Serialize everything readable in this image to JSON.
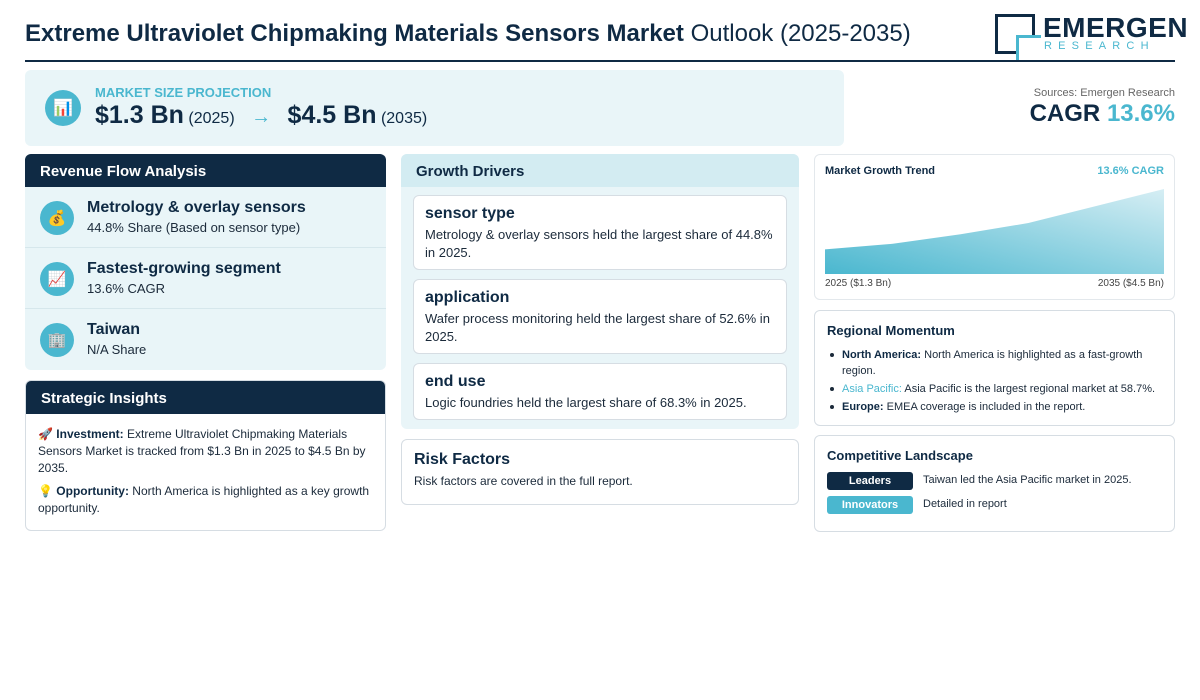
{
  "header": {
    "title_bold": "Extreme Ultraviolet Chipmaking Materials Sensors Market",
    "title_rest": "Outlook (2025-2035)"
  },
  "logo": {
    "word": "EMERGEN",
    "sub": "RESEARCH"
  },
  "projection": {
    "label": "MARKET SIZE PROJECTION",
    "start_value": "$1.3 Bn",
    "start_year": "(2025)",
    "arrow": "→",
    "end_value": "$4.5 Bn",
    "end_year": "(2035)",
    "icon": "bar-chart-icon"
  },
  "cagr_box": {
    "sources": "Sources: Emergen Research",
    "label": "CAGR",
    "value": "13.6%"
  },
  "revenue_flow": {
    "title": "Revenue Flow Analysis",
    "items": [
      {
        "icon": "money-bag-icon",
        "glyph": "💰",
        "title": "Metrology & overlay sensors",
        "sub": "44.8% Share (Based on sensor type)"
      },
      {
        "icon": "trend-up-icon",
        "glyph": "📈",
        "title": "Fastest-growing segment",
        "sub": "13.6% CAGR"
      },
      {
        "icon": "building-icon",
        "glyph": "🏢",
        "title": "Taiwan",
        "sub": "N/A Share"
      }
    ]
  },
  "strategic_insights": {
    "title": "Strategic Insights",
    "items": [
      {
        "icon": "🚀",
        "label": "Investment:",
        "text": "Extreme Ultraviolet Chipmaking Materials Sensors Market is tracked from $1.3 Bn in 2025 to $4.5 Bn by 2035."
      },
      {
        "icon": "💡",
        "label": "Opportunity:",
        "text": "North America is highlighted as a key growth opportunity."
      }
    ]
  },
  "growth_drivers": {
    "title": "Growth Drivers",
    "cards": [
      {
        "title": "sensor type",
        "text": "Metrology & overlay sensors held the largest share of 44.8% in 2025."
      },
      {
        "title": "application",
        "text": "Wafer process monitoring held the largest share of 52.6% in 2025."
      },
      {
        "title": "end use",
        "text": "Logic foundries held the largest share of 68.3% in 2025."
      }
    ]
  },
  "risk": {
    "title": "Risk Factors",
    "text": "Risk factors are covered in the full report."
  },
  "trend": {
    "title": "Market Growth Trend",
    "cagr": "13.6% CAGR",
    "start_label": "2025 ($1.3 Bn)",
    "end_label": "2035 ($4.5 Bn)",
    "colors": {
      "fill_top": "#d6eef4",
      "fill_bottom": "#4ab7cf"
    }
  },
  "chart_data": {
    "type": "area",
    "x": [
      2025,
      2027,
      2029,
      2031,
      2033,
      2035
    ],
    "values": [
      1.3,
      1.6,
      2.1,
      2.7,
      3.6,
      4.5
    ],
    "title": "Market Growth Trend",
    "xlabel": "",
    "ylabel": "",
    "ylim": [
      0,
      4.5
    ],
    "grid": false
  },
  "regional": {
    "title": "Regional Momentum",
    "items": [
      {
        "name": "North America:",
        "accent": false,
        "text": "North America is highlighted as a fast-growth region."
      },
      {
        "name": "Asia Pacific:",
        "accent": true,
        "text": "Asia Pacific is the largest regional market at 58.7%."
      },
      {
        "name": "Europe:",
        "accent": false,
        "text": "EMEA coverage is included in the report."
      }
    ]
  },
  "competitive": {
    "title": "Competitive Landscape",
    "rows": [
      {
        "badge": "Leaders",
        "style": "dark",
        "text": "Taiwan led the Asia Pacific market in 2025."
      },
      {
        "badge": "Innovators",
        "style": "light",
        "text": "Detailed in report"
      }
    ]
  },
  "colors": {
    "navy": "#0f2a44",
    "accent": "#4ab7cf",
    "panel_bg": "#e9f5f8"
  }
}
